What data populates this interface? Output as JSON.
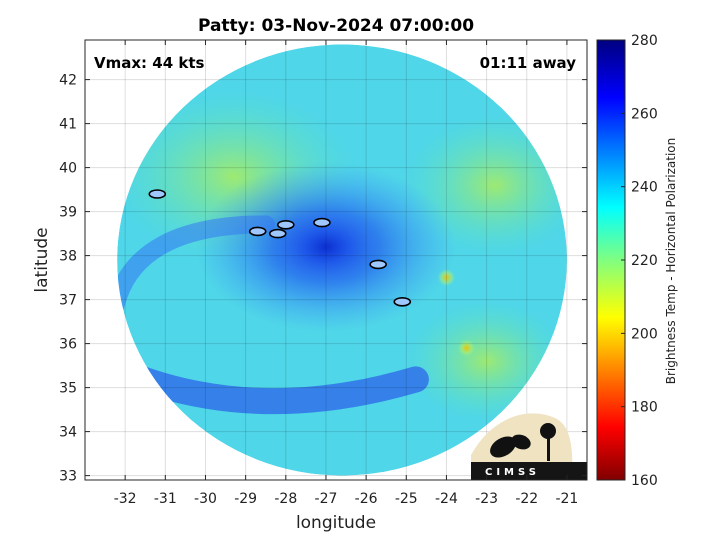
{
  "chart_data": {
    "type": "heatmap",
    "title": "Patty: 03-Nov-2024 07:00:00",
    "annotations": {
      "vmax": "Vmax: 44 kts",
      "time_offset": "01:11 away"
    },
    "xlabel": "longitude",
    "ylabel": "latitude",
    "xlim": [
      -33,
      -20.5
    ],
    "ylim": [
      32.9,
      42.9
    ],
    "xticks": [
      -32,
      -31,
      -30,
      -29,
      -28,
      -27,
      -26,
      -25,
      -24,
      -23,
      -22,
      -21
    ],
    "yticks": [
      33,
      34,
      35,
      36,
      37,
      38,
      39,
      40,
      41,
      42
    ],
    "grid": true,
    "colorbar": {
      "label": "Brightness Temp - Horizontal Polarization",
      "range": [
        160,
        280
      ],
      "ticks": [
        160,
        180,
        200,
        220,
        240,
        260,
        280
      ],
      "colormap": "jet"
    },
    "swath": {
      "center_lon": -26.6,
      "center_lat": 37.9,
      "radius_lon": 5.6,
      "radius_lat": 4.9
    },
    "features": [
      {
        "name": "storm core",
        "lon": -27.0,
        "lat": 38.2,
        "tb": 262
      },
      {
        "name": "outer rainband",
        "lon": -27.5,
        "lat": 35.3,
        "tb": 250
      },
      {
        "name": "warm spot",
        "lon": -24.0,
        "lat": 37.5,
        "tb": 212
      },
      {
        "name": "warm spot",
        "lon": -23.5,
        "lat": 35.9,
        "tb": 222
      },
      {
        "name": "background",
        "lon": -31.0,
        "lat": 40.5,
        "tb": 228
      }
    ],
    "contours": [
      {
        "lon": -31.2,
        "lat": 39.4
      },
      {
        "lon": -28.0,
        "lat": 38.7
      },
      {
        "lon": -28.2,
        "lat": 38.5
      },
      {
        "lon": -28.7,
        "lat": 38.55
      },
      {
        "lon": -27.1,
        "lat": 38.75
      },
      {
        "lon": -25.7,
        "lat": 37.8
      },
      {
        "lon": -25.1,
        "lat": 36.95
      }
    ]
  },
  "logo": {
    "text": "CIMSS"
  }
}
